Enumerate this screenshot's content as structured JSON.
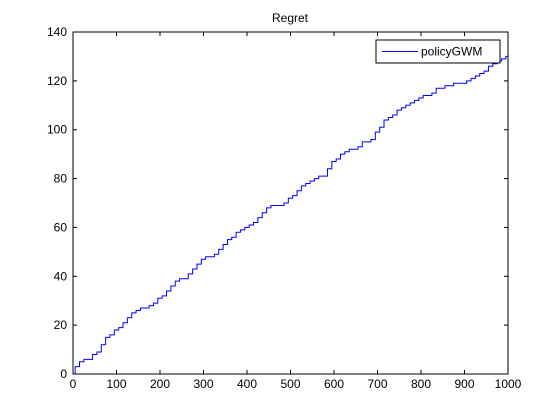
{
  "chart_data": {
    "type": "line",
    "title": "Regret",
    "xlabel": "",
    "ylabel": "",
    "xlim": [
      0,
      1000
    ],
    "ylim": [
      0,
      140
    ],
    "xticks": [
      0,
      100,
      200,
      300,
      400,
      500,
      600,
      700,
      800,
      900,
      1000
    ],
    "yticks": [
      0,
      20,
      40,
      60,
      80,
      100,
      120,
      140
    ],
    "grid": false,
    "legend_position": "top-right",
    "series": [
      {
        "name": "policyGWM",
        "color": "#0000ff",
        "x": [
          0,
          10,
          20,
          30,
          40,
          50,
          60,
          70,
          80,
          90,
          100,
          110,
          120,
          130,
          140,
          150,
          160,
          170,
          180,
          190,
          200,
          210,
          220,
          230,
          240,
          250,
          260,
          270,
          280,
          290,
          300,
          310,
          320,
          330,
          340,
          350,
          360,
          370,
          380,
          390,
          400,
          410,
          420,
          430,
          440,
          450,
          460,
          470,
          480,
          490,
          500,
          510,
          520,
          530,
          540,
          550,
          560,
          570,
          580,
          590,
          600,
          610,
          620,
          630,
          640,
          650,
          660,
          670,
          680,
          690,
          700,
          710,
          720,
          730,
          740,
          750,
          760,
          770,
          780,
          790,
          800,
          810,
          820,
          830,
          840,
          850,
          860,
          870,
          880,
          890,
          900,
          910,
          920,
          930,
          940,
          950,
          960,
          970,
          980,
          990,
          1000
        ],
        "y": [
          0,
          3,
          5,
          6,
          6,
          8,
          9,
          12,
          15,
          16,
          18,
          19,
          21,
          23,
          25,
          26,
          27,
          27,
          28,
          29,
          31,
          32,
          34,
          36,
          38,
          39,
          39,
          41,
          43,
          45,
          47,
          48,
          48,
          49,
          51,
          53,
          55,
          56,
          58,
          59,
          60,
          61,
          62,
          64,
          66,
          68,
          69,
          69,
          69,
          70,
          72,
          73,
          75,
          77,
          78,
          79,
          80,
          81,
          81,
          84,
          87,
          88,
          90,
          91,
          92,
          92,
          93,
          95,
          95,
          96,
          99,
          101,
          104,
          105,
          106,
          108,
          109,
          110,
          111,
          112,
          113,
          114,
          114,
          115,
          117,
          117,
          118,
          118,
          119,
          119,
          119,
          120,
          121,
          122,
          123,
          124,
          126,
          127,
          128,
          129,
          130
        ]
      }
    ]
  }
}
